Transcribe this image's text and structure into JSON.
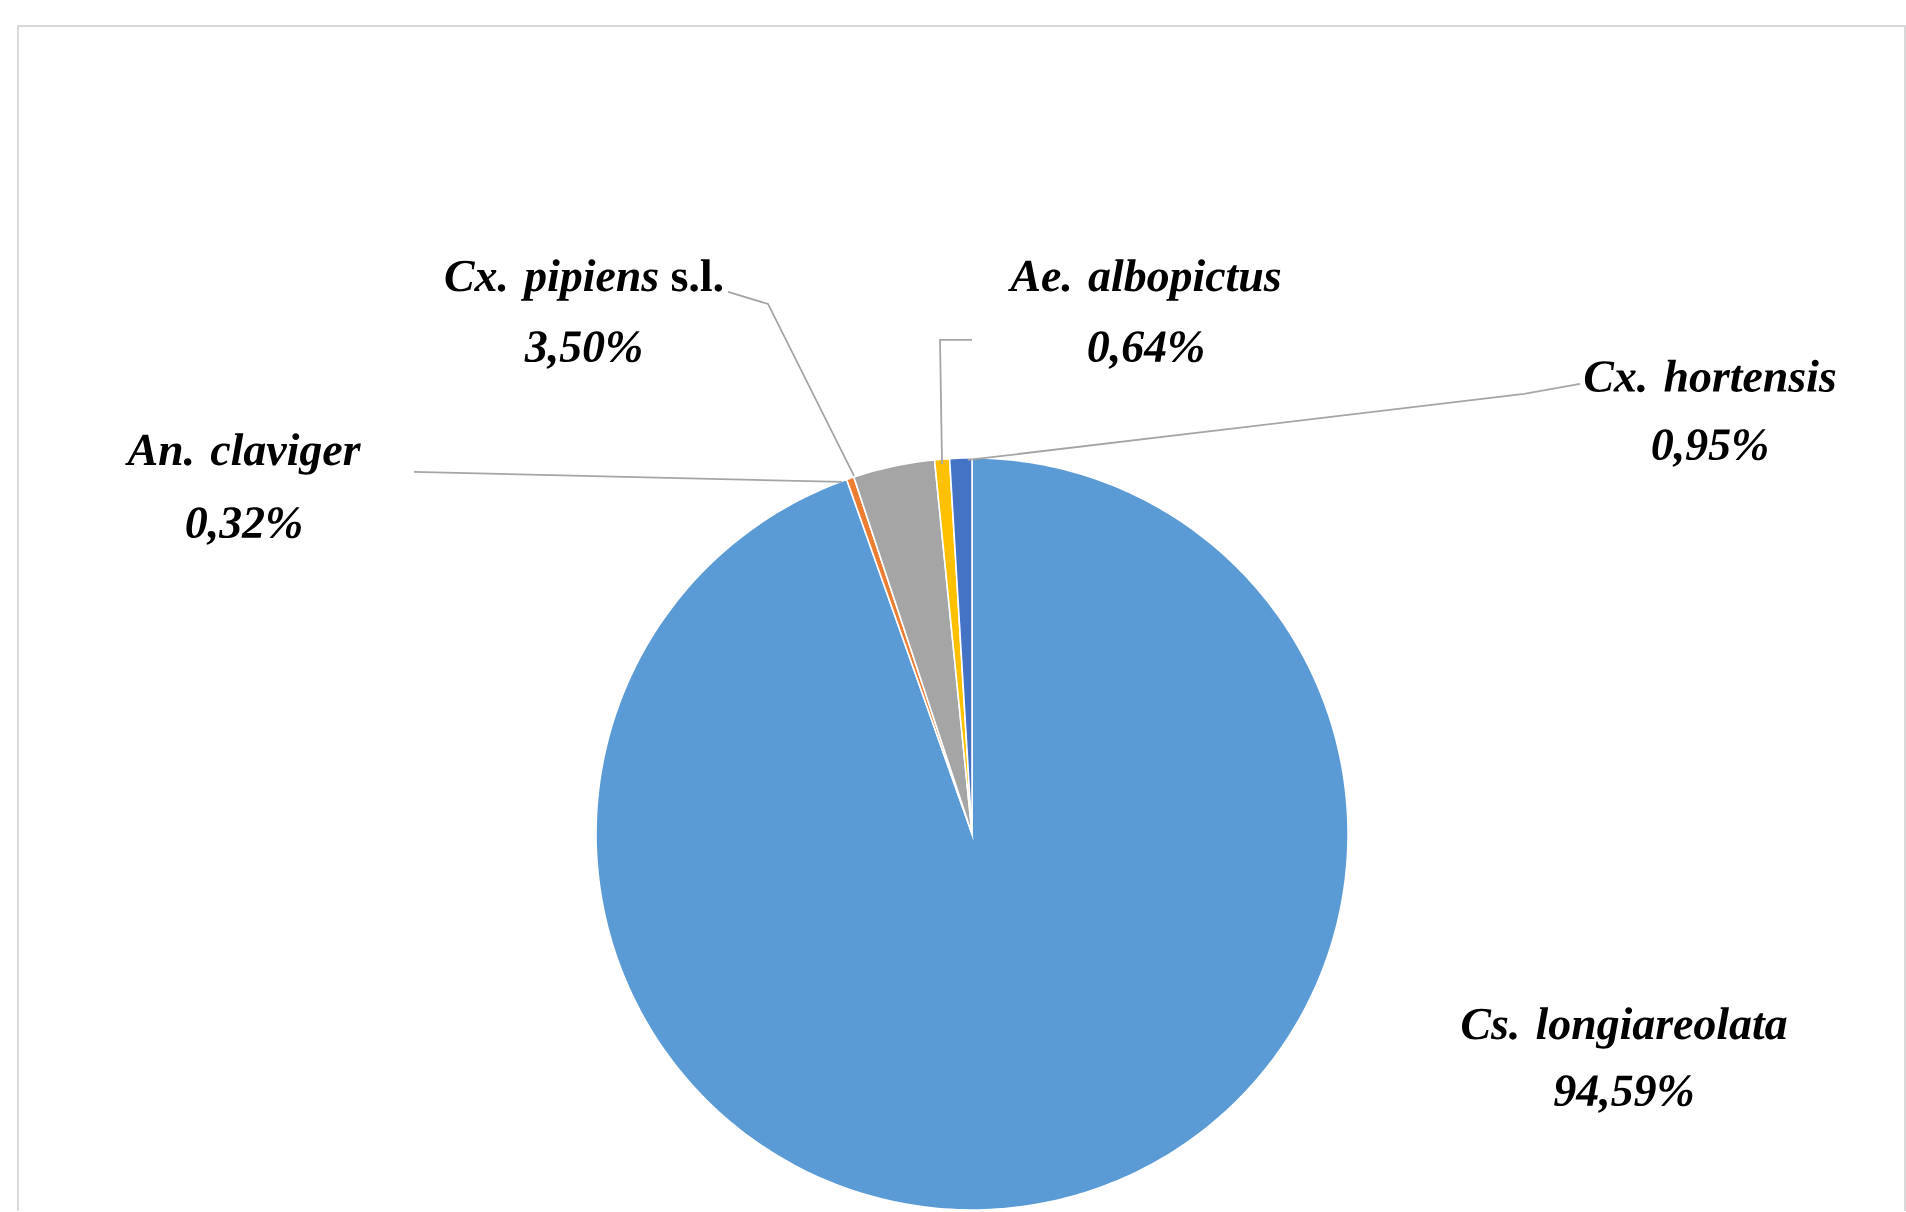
{
  "chart_data": {
    "type": "pie",
    "categories": [
      "Cs. longiareolata",
      "An. claviger",
      "*Cx. pipiens* s.l.",
      "Ae. albopictus",
      "Cx. hortensis"
    ],
    "values": [
      94.59,
      0.32,
      3.5,
      0.64,
      0.95
    ],
    "colors": [
      "#5b9bd5",
      "#ed7d31",
      "#a5a5a5",
      "#ffc000",
      "#4472c4"
    ],
    "value_labels": [
      "94,59%",
      "0,32%",
      "3,50%",
      "0,64%",
      "0,95%"
    ]
  }
}
